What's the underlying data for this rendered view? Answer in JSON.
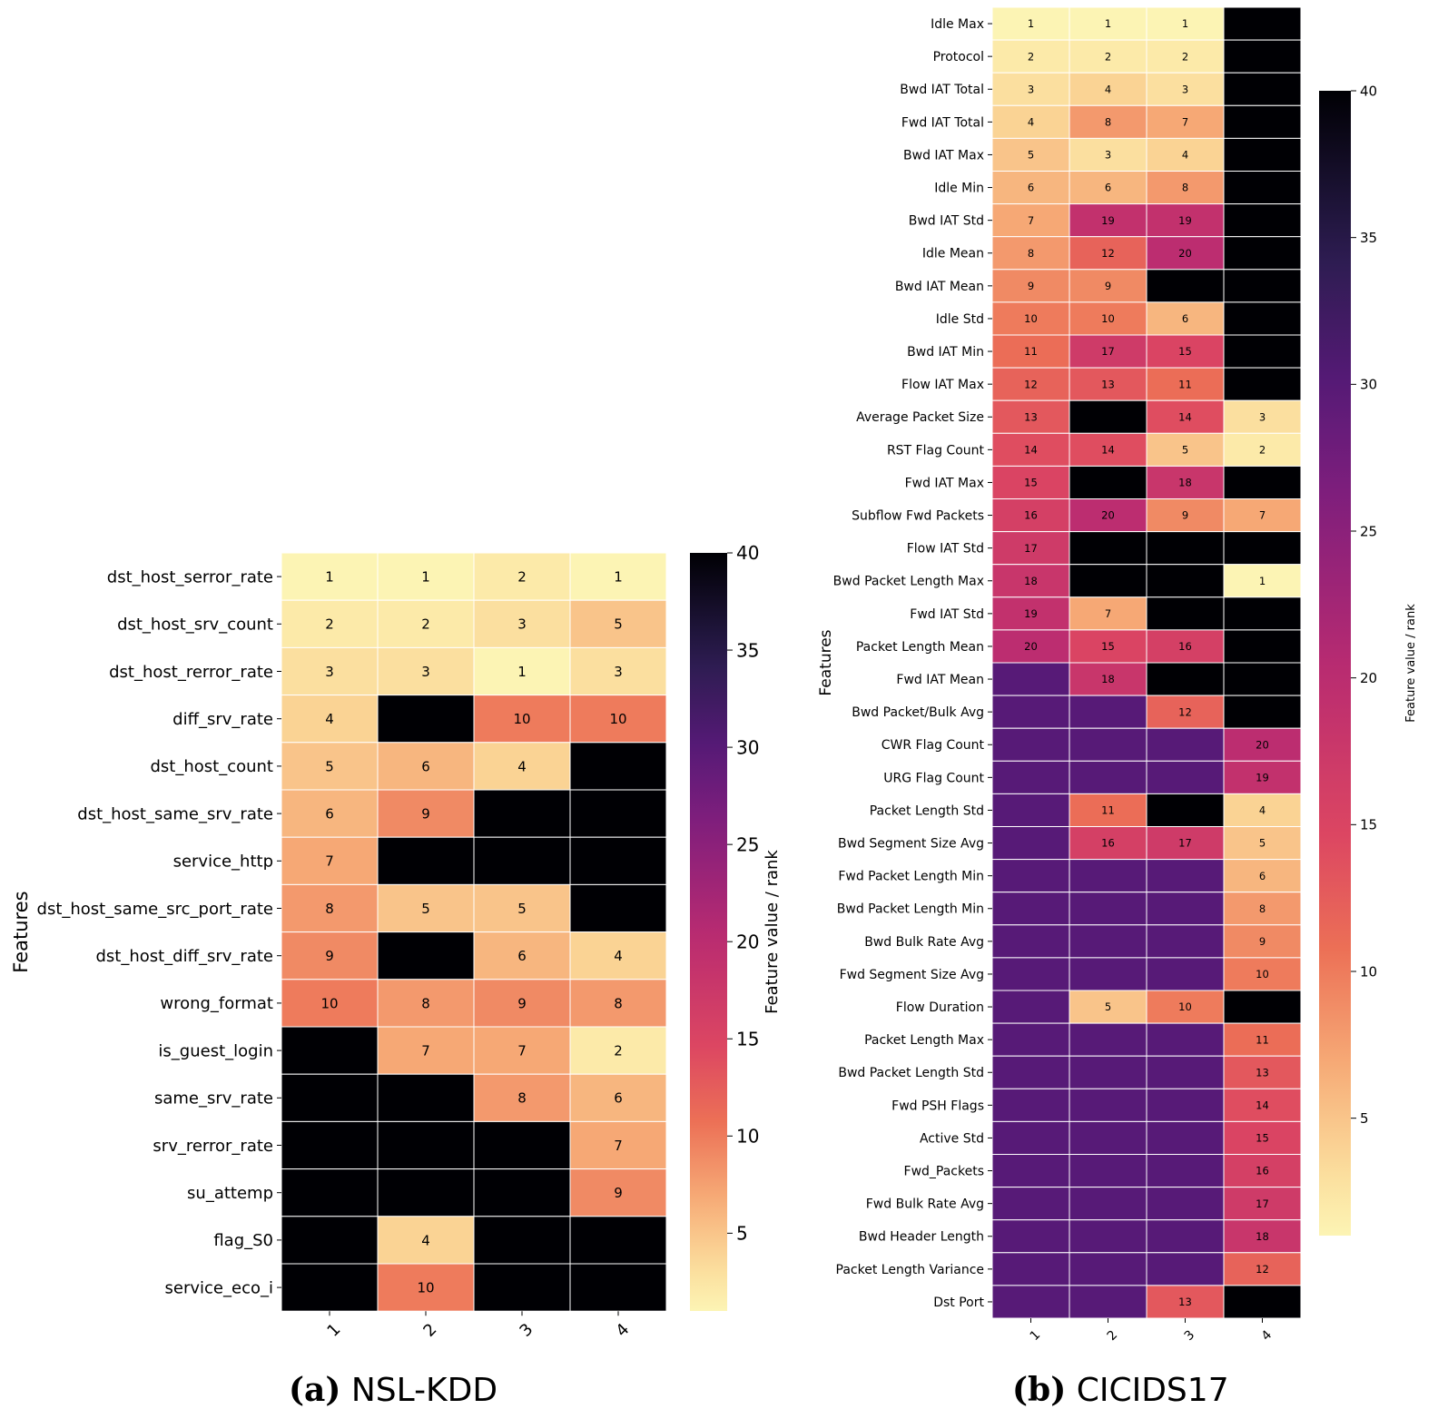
{
  "chart_data": [
    {
      "type": "heatmap",
      "panel_label": "(a)",
      "title": "NSL-KDD",
      "ylabel": "Features",
      "xlabel": "",
      "x": [
        "1",
        "2",
        "3",
        "4"
      ],
      "features": [
        "dst_host_serror_rate",
        "dst_host_srv_count",
        "dst_host_rerror_rate",
        "diff_srv_rate",
        "dst_host_count",
        "dst_host_same_srv_rate",
        "service_http",
        "dst_host_same_src_port_rate",
        "dst_host_diff_srv_rate",
        "wrong_format",
        "is_guest_login",
        "same_srv_rate",
        "srv_rerror_rate",
        "su_attemp",
        "flag_S0",
        "service_eco_i"
      ],
      "values": [
        [
          1,
          1,
          2,
          1
        ],
        [
          2,
          2,
          3,
          5
        ],
        [
          3,
          3,
          1,
          3
        ],
        [
          4,
          40,
          10,
          10
        ],
        [
          5,
          6,
          4,
          40
        ],
        [
          6,
          9,
          40,
          40
        ],
        [
          7,
          40,
          40,
          40
        ],
        [
          8,
          5,
          5,
          40
        ],
        [
          9,
          40,
          6,
          4
        ],
        [
          10,
          8,
          9,
          8
        ],
        [
          40,
          7,
          7,
          2
        ],
        [
          40,
          40,
          8,
          6
        ],
        [
          40,
          40,
          40,
          7
        ],
        [
          40,
          40,
          40,
          9
        ],
        [
          40,
          4,
          40,
          40
        ],
        [
          40,
          10,
          40,
          40
        ]
      ],
      "annotated_max": 20,
      "colorbar": {
        "label": "Feature value / rank",
        "min": 1,
        "max": 40,
        "ticks": [
          5,
          10,
          15,
          20,
          25,
          30,
          35,
          40
        ],
        "colormap": "magma_r"
      }
    },
    {
      "type": "heatmap",
      "panel_label": "(b)",
      "title": "CICIDS17",
      "ylabel": "Features",
      "xlabel": "",
      "x": [
        "1",
        "2",
        "3",
        "4"
      ],
      "features": [
        "Idle Max",
        "Protocol",
        "Bwd IAT Total",
        "Fwd IAT Total",
        "Bwd IAT Max",
        "Idle Min",
        "Bwd IAT Std",
        "Idle Mean",
        "Bwd IAT Mean",
        "Idle Std",
        "Bwd IAT Min",
        "Flow IAT Max",
        "Average Packet Size",
        "RST Flag Count",
        "Fwd IAT Max",
        "Subflow Fwd Packets",
        "Flow IAT Std",
        "Bwd Packet Length Max",
        "Fwd IAT Std",
        "Packet Length Mean",
        "Fwd IAT Mean",
        "Bwd Packet/Bulk Avg",
        "CWR Flag Count",
        "URG Flag Count",
        "Packet Length Std",
        "Bwd Segment Size Avg",
        "Fwd Packet Length Min",
        "Bwd Packet Length Min",
        "Bwd Bulk Rate Avg",
        "Fwd Segment Size Avg",
        "Flow Duration",
        "Packet Length Max",
        "Bwd Packet Length Std",
        "Fwd PSH Flags",
        "Active Std",
        "Fwd_Packets",
        "Fwd Bulk Rate Avg",
        "Bwd Header Length",
        "Packet Length Variance",
        "Dst Port"
      ],
      "values": [
        [
          1,
          1,
          1,
          40
        ],
        [
          2,
          2,
          2,
          40
        ],
        [
          3,
          4,
          3,
          40
        ],
        [
          4,
          8,
          7,
          40
        ],
        [
          5,
          3,
          4,
          40
        ],
        [
          6,
          6,
          8,
          40
        ],
        [
          7,
          19,
          19,
          40
        ],
        [
          8,
          12,
          20,
          40
        ],
        [
          9,
          9,
          40,
          40
        ],
        [
          10,
          10,
          6,
          40
        ],
        [
          11,
          17,
          15,
          40
        ],
        [
          12,
          13,
          11,
          40
        ],
        [
          13,
          40,
          14,
          3
        ],
        [
          14,
          14,
          5,
          2
        ],
        [
          15,
          40,
          18,
          40
        ],
        [
          16,
          20,
          9,
          7
        ],
        [
          17,
          40,
          40,
          40
        ],
        [
          18,
          40,
          40,
          1
        ],
        [
          19,
          7,
          40,
          40
        ],
        [
          20,
          15,
          16,
          40
        ],
        [
          30,
          18,
          40,
          40
        ],
        [
          30,
          30,
          12,
          40
        ],
        [
          30,
          30,
          30,
          20
        ],
        [
          30,
          30,
          30,
          19
        ],
        [
          30,
          11,
          40,
          4
        ],
        [
          30,
          16,
          17,
          5
        ],
        [
          30,
          30,
          30,
          6
        ],
        [
          30,
          30,
          30,
          8
        ],
        [
          30,
          30,
          30,
          9
        ],
        [
          30,
          30,
          30,
          10
        ],
        [
          30,
          5,
          10,
          40
        ],
        [
          30,
          30,
          30,
          11
        ],
        [
          30,
          30,
          30,
          13
        ],
        [
          30,
          30,
          30,
          14
        ],
        [
          30,
          30,
          30,
          15
        ],
        [
          30,
          30,
          30,
          16
        ],
        [
          30,
          30,
          30,
          17
        ],
        [
          30,
          30,
          30,
          18
        ],
        [
          30,
          30,
          30,
          12
        ],
        [
          30,
          30,
          13,
          40
        ]
      ],
      "annotated_max": 20,
      "colorbar": {
        "label": "Feature value / rank",
        "min": 1,
        "max": 40,
        "ticks": [
          5,
          10,
          15,
          20,
          25,
          30,
          35,
          40
        ],
        "colormap": "magma_r"
      }
    }
  ]
}
